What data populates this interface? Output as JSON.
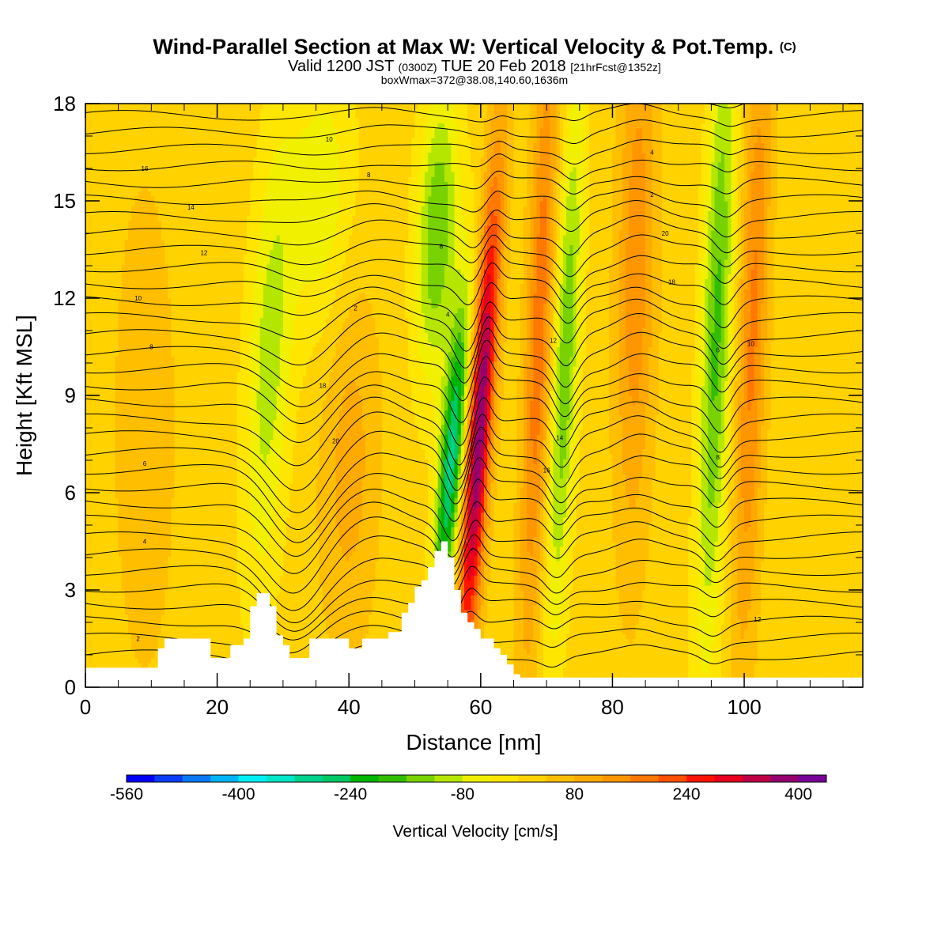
{
  "chart_data": {
    "type": "heatmap",
    "title": "Wind-Parallel Section at Max W: Vertical Velocity & Pot.Temp.",
    "title_suffix": "(C)",
    "subtitle_parts": [
      "Valid 1200 JST",
      "(0300Z)",
      "TUE 20 Feb 2018",
      "[21hrFcst@1352z]"
    ],
    "subtitle2": "boxWmax=372@38.08,140.60,1636m",
    "xlabel": "Distance [nm]",
    "ylabel": "Height [Kft MSL]",
    "xlim": [
      0,
      118
    ],
    "ylim": [
      0,
      18
    ],
    "x_ticks": [
      "0",
      "20",
      "40",
      "60",
      "80",
      "100"
    ],
    "y_ticks": [
      "0",
      "3",
      "6",
      "9",
      "12",
      "15",
      "18"
    ],
    "colorbar": {
      "label": "Vertical Velocity [cm/s]",
      "tick_labels": [
        "-560",
        "-400",
        "-240",
        "-80",
        "80",
        "240",
        "400"
      ],
      "levels": [
        -560,
        -520,
        -480,
        -440,
        -400,
        -360,
        -320,
        -280,
        -240,
        -200,
        -160,
        -120,
        -80,
        -40,
        0,
        40,
        80,
        120,
        160,
        200,
        240,
        280,
        320,
        360,
        400,
        440
      ],
      "colors": [
        "#0000f5",
        "#0a3cf5",
        "#0a78f5",
        "#00b4f5",
        "#00f0f5",
        "#00e6c8",
        "#00d28c",
        "#00c864",
        "#00b400",
        "#32be00",
        "#78d200",
        "#b4e600",
        "#f0f000",
        "#ffe600",
        "#ffd200",
        "#ffbe00",
        "#ffaa00",
        "#ff9600",
        "#ff7800",
        "#ff5000",
        "#ff1400",
        "#e6001e",
        "#be0046",
        "#96006e",
        "#780096"
      ]
    },
    "theta_contour_labels": [
      "2",
      "4",
      "6",
      "8",
      "10",
      "12",
      "14",
      "16",
      "18",
      "20"
    ],
    "features": {
      "max_w_cm_s": 372,
      "max_w_lat": 38.08,
      "max_w_lon": 140.6,
      "max_w_height_m": 1636,
      "downdraft_x_nm": [
        55,
        72,
        95
      ],
      "updraft_x_nm": [
        59,
        68,
        83,
        101
      ],
      "terrain_x_nm": [
        0,
        10,
        11,
        12,
        18,
        19,
        22,
        24,
        25,
        26,
        27,
        28,
        29,
        30,
        31,
        32,
        34,
        38,
        40,
        42,
        44,
        46,
        48,
        49,
        50,
        51,
        52,
        53,
        54,
        55,
        56,
        57,
        58,
        59,
        60,
        61,
        62,
        63,
        64,
        65,
        66,
        118
      ],
      "terrain_kft": [
        0.6,
        0.6,
        1.2,
        1.5,
        1.5,
        0.9,
        1.3,
        1.5,
        2.5,
        2.9,
        2.9,
        2.5,
        1.6,
        1.3,
        0.9,
        0.9,
        1.5,
        1.5,
        1.2,
        1.5,
        1.5,
        1.7,
        2.3,
        2.6,
        3.1,
        3.3,
        3.7,
        4.2,
        4.5,
        4.0,
        3.0,
        2.3,
        2.0,
        1.8,
        1.5,
        1.5,
        1.2,
        1.0,
        0.7,
        0.4,
        0.3,
        0.3
      ]
    }
  }
}
